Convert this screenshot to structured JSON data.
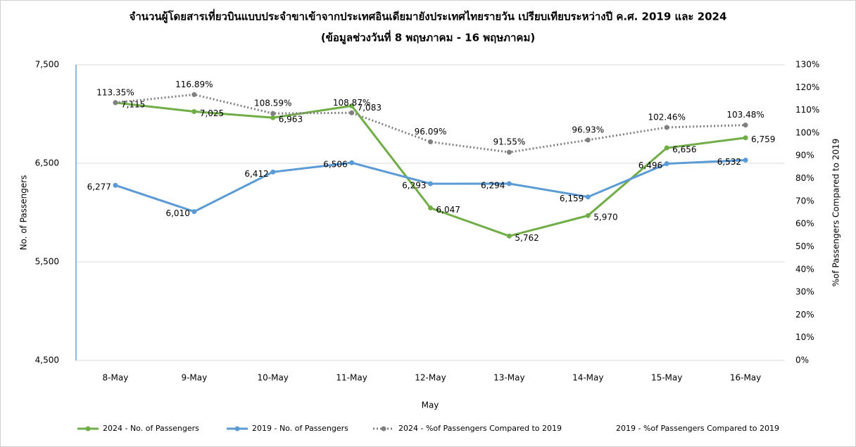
{
  "chart_data": {
    "type": "line",
    "title": "จำนวนผู้โดยสารเที่ยวบินแบบประจำขาเข้าจากประเทศอินเดียมายังประเทศไทยรายวัน เปรียบเทียบระหว่างปี ค.ศ. 2019 และ 2024",
    "subtitle": "(ข้อมูลช่วงวันที่ 8 พฤษภาคม - 16 พฤษภาคม)",
    "x_label": "May",
    "y_label": "No. of Passengers",
    "y2_label": "%of Passengers Compared to 2019",
    "categories": [
      "8-May",
      "9-May",
      "10-May",
      "11-May",
      "12-May",
      "13-May",
      "14-May",
      "15-May",
      "16-May"
    ],
    "ylim": [
      4500,
      7500
    ],
    "yticks": [
      {
        "value": 4500,
        "label": "4,500"
      },
      {
        "value": 5500,
        "label": "5,500"
      },
      {
        "value": 6500,
        "label": "6,500"
      },
      {
        "value": 7500,
        "label": "7,500"
      }
    ],
    "y2lim": [
      0,
      130
    ],
    "y2ticks": [
      {
        "value": 0,
        "label": "0%"
      },
      {
        "value": 10,
        "label": "10%"
      },
      {
        "value": 20,
        "label": "20%"
      },
      {
        "value": 30,
        "label": "30%"
      },
      {
        "value": 40,
        "label": "40%"
      },
      {
        "value": 50,
        "label": "50%"
      },
      {
        "value": 60,
        "label": "60%"
      },
      {
        "value": 70,
        "label": "70%"
      },
      {
        "value": 80,
        "label": "80%"
      },
      {
        "value": 90,
        "label": "90%"
      },
      {
        "value": 100,
        "label": "100%"
      },
      {
        "value": 110,
        "label": "110%"
      },
      {
        "value": 120,
        "label": "120%"
      },
      {
        "value": 130,
        "label": "130%"
      }
    ],
    "grid": true,
    "legend": "bottom",
    "series": [
      {
        "name": "2024 - No. of Passengers",
        "color": "#70ad47",
        "values": [
          7115,
          7025,
          6963,
          7083,
          6047,
          5762,
          5970,
          6656,
          6759
        ],
        "value_labels": [
          "7,115",
          "7,025",
          "6,963",
          "7,083",
          "6,047",
          "5,762",
          "5,970",
          "6,656",
          "6,759"
        ]
      },
      {
        "name": "2019 - No. of Passengers",
        "color": "#5b9bd5",
        "values": [
          6277,
          6010,
          6412,
          6506,
          6293,
          6294,
          6159,
          6496,
          6532
        ],
        "value_labels": [
          "6,277",
          "6,010",
          "6,412",
          "6,506",
          "6,293",
          "6,294",
          "6,159",
          "6,496",
          "6,532"
        ]
      },
      {
        "name": "2024 - %of Passengers Compared to 2019",
        "color": "#808080",
        "axis": "y2",
        "dash": "dotted",
        "values": [
          113.35,
          116.89,
          108.59,
          108.87,
          96.09,
          91.55,
          96.93,
          102.46,
          103.48
        ],
        "value_labels": [
          "113.35%",
          "116.89%",
          "108.59%",
          "108.87%",
          "96.09%",
          "91.55%",
          "96.93%",
          "102.46%",
          "103.48%"
        ]
      },
      {
        "name": "2019 - %of Passengers Compared to 2019",
        "axis": "y2",
        "values": [
          null,
          null,
          null,
          null,
          null,
          null,
          null,
          null,
          null
        ]
      }
    ]
  }
}
